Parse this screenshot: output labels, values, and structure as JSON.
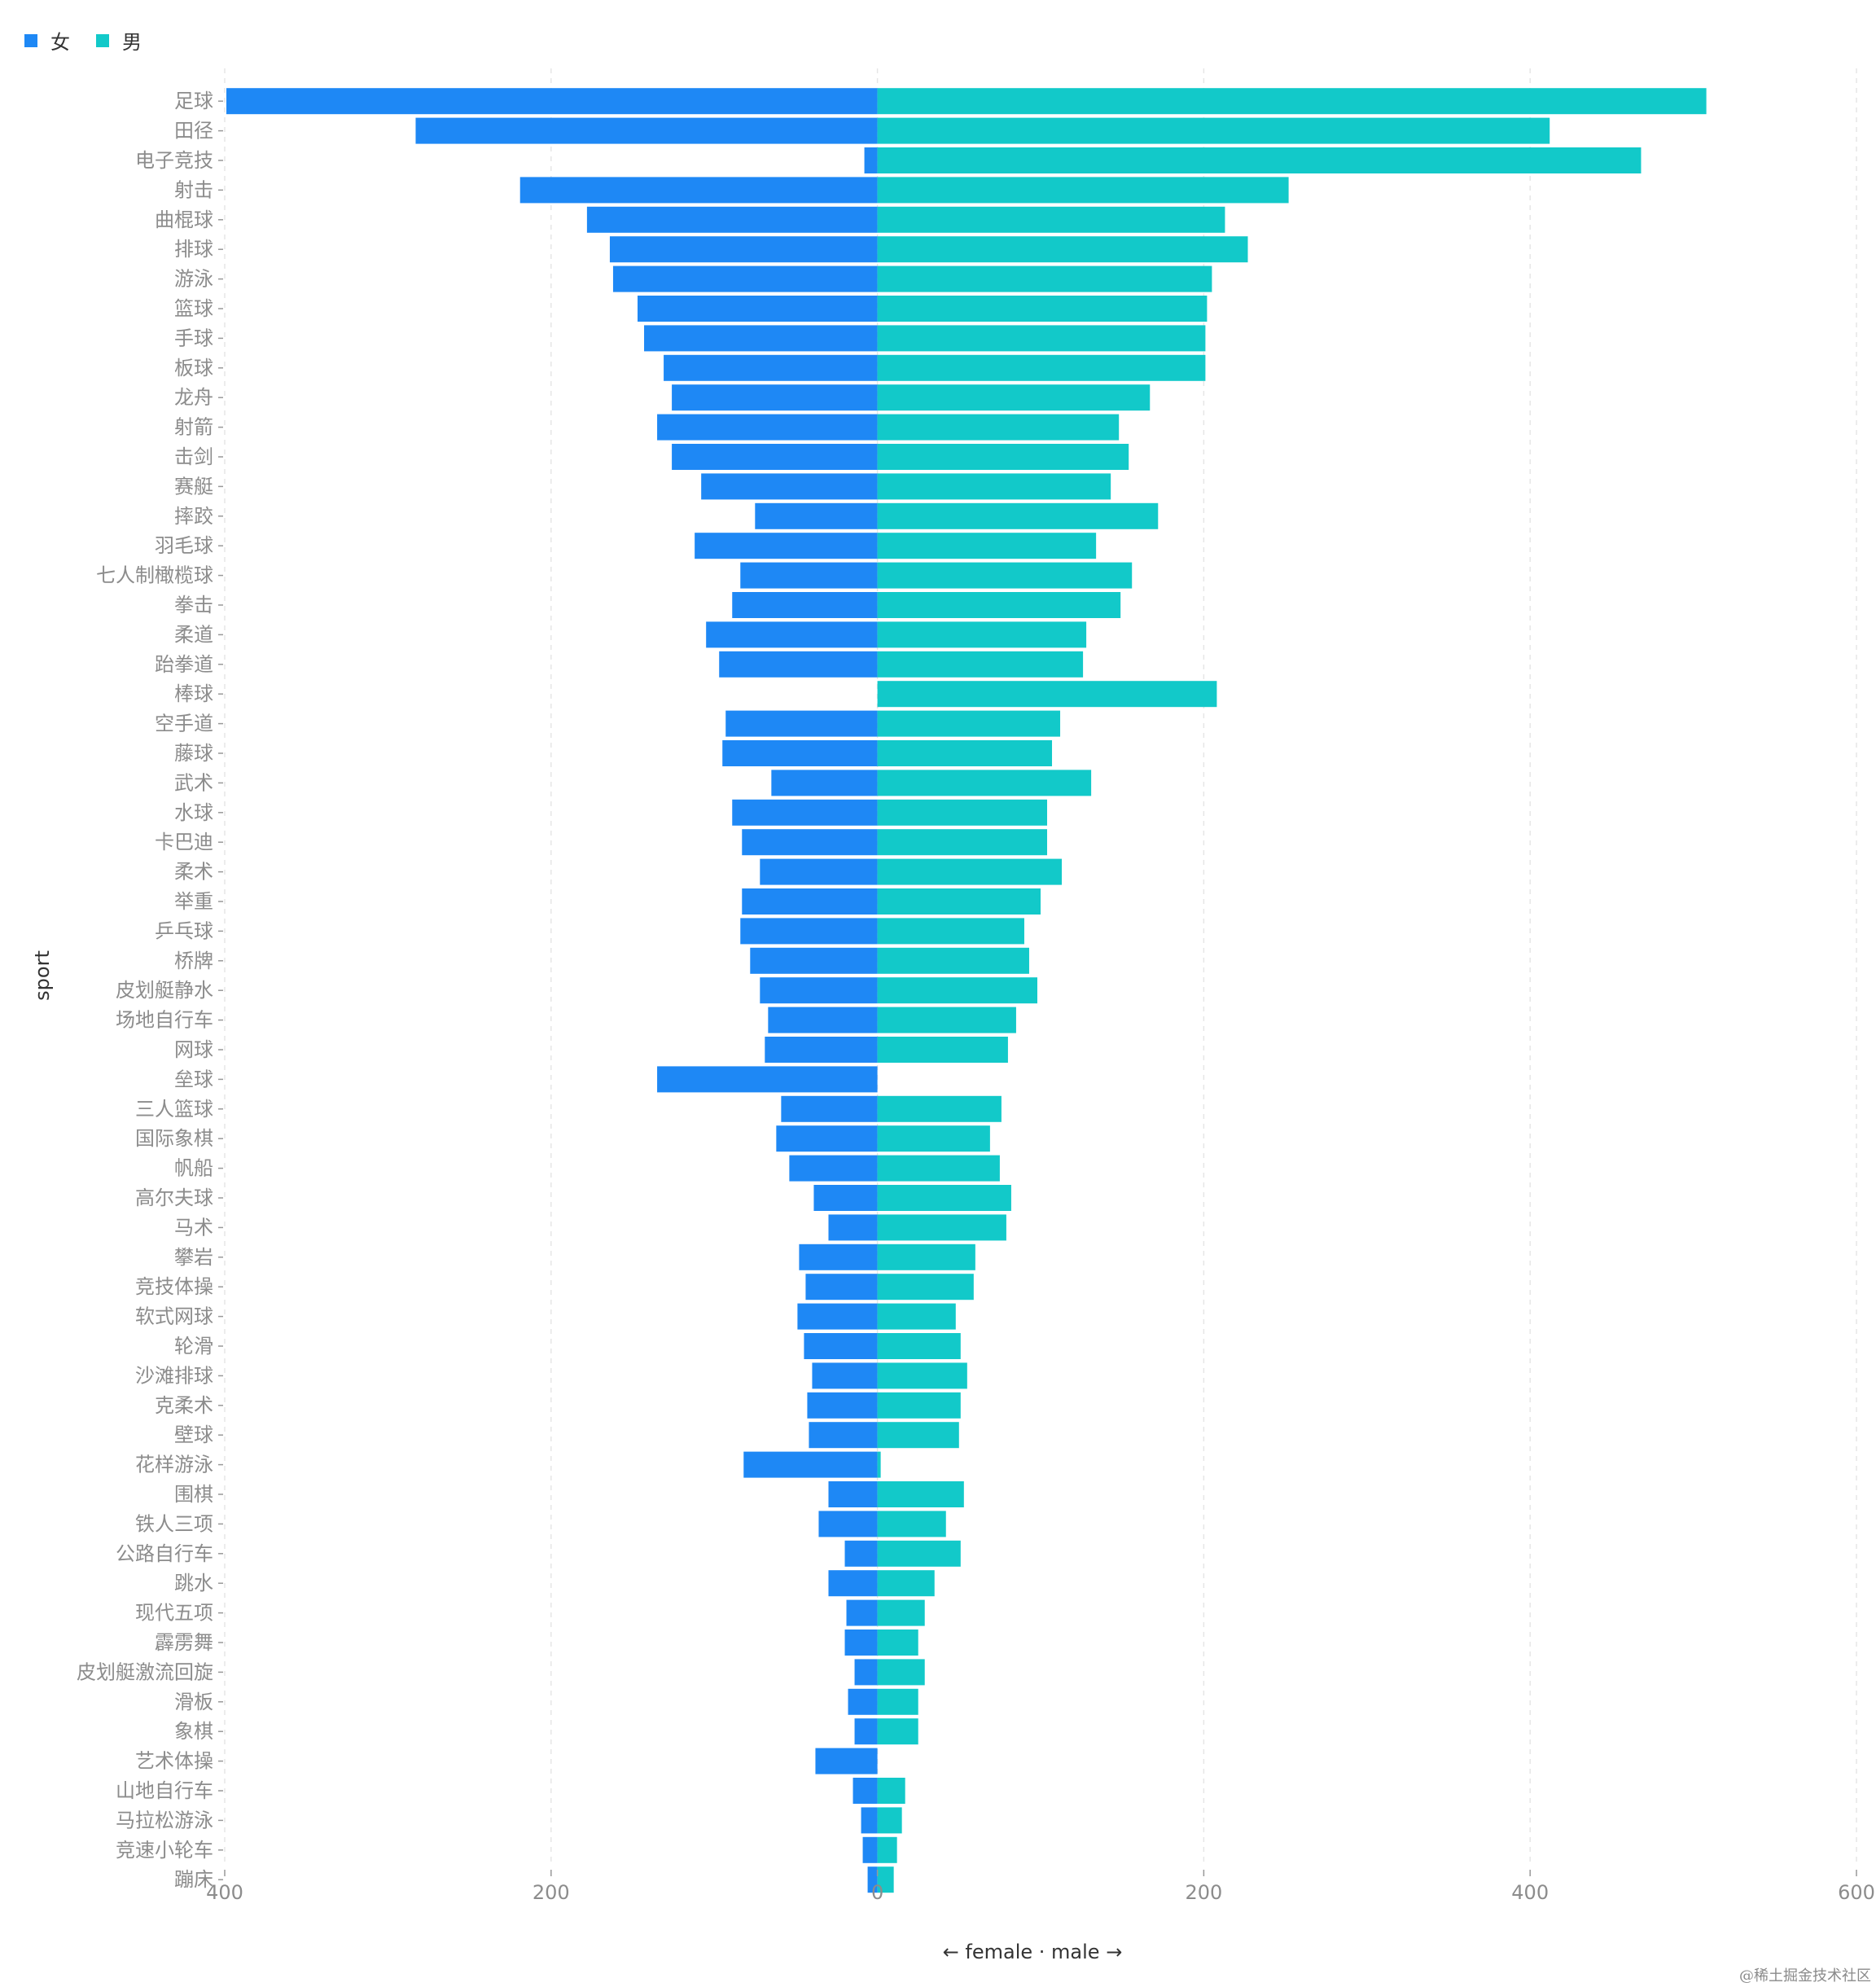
{
  "chart_data": {
    "type": "bar",
    "orientation": "horizontal-diverging",
    "title": "",
    "xlabel": "← female · male →",
    "ylabel": "sport",
    "xlim": [
      -400,
      600
    ],
    "x_ticks": [
      -400,
      -200,
      0,
      200,
      400,
      600
    ],
    "x_tick_labels": [
      "400",
      "200",
      "0",
      "200",
      "400",
      "600"
    ],
    "grid": true,
    "legend_position": "top-left",
    "legend": [
      {
        "name": "女",
        "color": "#1e88f5"
      },
      {
        "name": "男",
        "color": "#12c9c9"
      }
    ],
    "categories": [
      "足球",
      "田径",
      "电子竞技",
      "射击",
      "曲棍球",
      "排球",
      "游泳",
      "篮球",
      "手球",
      "板球",
      "龙舟",
      "射箭",
      "击剑",
      "赛艇",
      "摔跤",
      "羽毛球",
      "七人制橄榄球",
      "拳击",
      "柔道",
      "跆拳道",
      "棒球",
      "空手道",
      "藤球",
      "武术",
      "水球",
      "卡巴迪",
      "柔术",
      "举重",
      "乒乓球",
      "桥牌",
      "皮划艇静水",
      "场地自行车",
      "网球",
      "垒球",
      "三人篮球",
      "国际象棋",
      "帆船",
      "高尔夫球",
      "马术",
      "攀岩",
      "竞技体操",
      "软式网球",
      "轮滑",
      "沙滩排球",
      "克柔术",
      "壁球",
      "花样游泳",
      "围棋",
      "铁人三项",
      "公路自行车",
      "跳水",
      "现代五项",
      "霹雳舞",
      "皮划艇激流回旋",
      "滑板",
      "象棋",
      "艺术体操",
      "山地自行车",
      "马拉松游泳",
      "竞速小轮车",
      "蹦床"
    ],
    "series": [
      {
        "name": "女",
        "values": [
          399,
          283,
          8,
          219,
          178,
          164,
          162,
          147,
          143,
          131,
          126,
          135,
          126,
          108,
          75,
          112,
          84,
          89,
          105,
          97,
          0,
          93,
          95,
          65,
          89,
          83,
          72,
          83,
          84,
          78,
          72,
          67,
          69,
          135,
          59,
          62,
          54,
          39,
          30,
          48,
          44,
          49,
          45,
          40,
          43,
          42,
          82,
          30,
          36,
          20,
          30,
          19,
          20,
          14,
          18,
          14,
          38,
          15,
          10,
          9,
          6
        ]
      },
      {
        "name": "男",
        "values": [
          508,
          412,
          468,
          252,
          213,
          227,
          205,
          202,
          201,
          201,
          167,
          148,
          154,
          143,
          172,
          134,
          156,
          149,
          128,
          126,
          208,
          112,
          107,
          131,
          104,
          104,
          113,
          100,
          90,
          93,
          98,
          85,
          80,
          0,
          76,
          69,
          75,
          82,
          79,
          60,
          59,
          48,
          51,
          55,
          51,
          50,
          2,
          53,
          42,
          51,
          35,
          29,
          25,
          29,
          25,
          25,
          0,
          17,
          15,
          12,
          10
        ]
      }
    ]
  },
  "watermark": "@稀土掘金技术社区"
}
